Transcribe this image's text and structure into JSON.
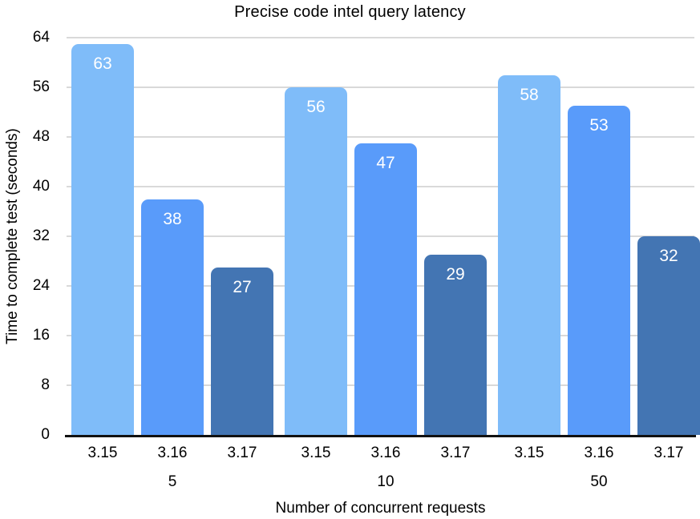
{
  "chart_data": {
    "type": "bar",
    "title": "Precise code intel query latency",
    "xlabel": "Number of concurrent requests",
    "ylabel": "Time to complete test (seconds)",
    "categories": [
      "5",
      "10",
      "50"
    ],
    "series": [
      {
        "name": "3.15",
        "color": "#7fbcf9",
        "values": [
          63,
          56,
          58
        ]
      },
      {
        "name": "3.16",
        "color": "#599bfa",
        "values": [
          38,
          47,
          53
        ]
      },
      {
        "name": "3.17",
        "color": "#4375b3",
        "values": [
          27,
          29,
          32
        ]
      }
    ],
    "ylim": [
      0,
      64
    ],
    "yticks": [
      0,
      8,
      16,
      24,
      32,
      40,
      48,
      56,
      64
    ],
    "grid": true,
    "legend_position": "none",
    "value_labels": "inside-top-white",
    "colors": {
      "gridline": "#d9d9d9",
      "axis_line": "#111111",
      "value_label": "#ffffff",
      "text": "#000000",
      "background": "#ffffff"
    }
  }
}
